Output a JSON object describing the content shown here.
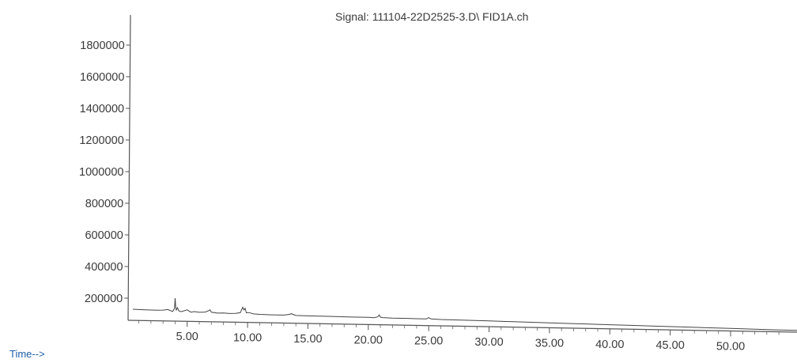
{
  "chart_data": {
    "type": "line",
    "title": "Signal: 111104-22D2525-3.D\\ FID1A.ch",
    "xlabel": "Time-->",
    "ylabel": "",
    "xlim": [
      0.5,
      55.5
    ],
    "ylim": [
      0,
      1950000
    ],
    "y_ticks": [
      200000,
      400000,
      600000,
      800000,
      1000000,
      1200000,
      1400000,
      1600000,
      1800000
    ],
    "y_tick_labels": [
      "200000",
      "400000",
      "600000",
      "800000",
      "1000000",
      "1200000",
      "1400000",
      "1600000",
      "1800000"
    ],
    "x_ticks": [
      5,
      10,
      15,
      20,
      25,
      30,
      35,
      40,
      45,
      50
    ],
    "x_tick_labels": [
      "5.00",
      "10.00",
      "15.00",
      "20.00",
      "25.00",
      "30.00",
      "35.00",
      "40.00",
      "45.00",
      "50.00"
    ],
    "grid": false,
    "colors": {
      "trace": "#444444",
      "axis": "#555555",
      "time_label": "#1f5fa8"
    },
    "series": [
      {
        "x": [
          0.5,
          1.5,
          2.5,
          3.0,
          3.4,
          3.8,
          3.95,
          4.0,
          4.05,
          4.1,
          4.2,
          4.3,
          4.5,
          5.0,
          5.3,
          5.6,
          6.0,
          6.5,
          6.8,
          6.9,
          7.0,
          7.5,
          8.0,
          8.5,
          9.0,
          9.4,
          9.6,
          9.7,
          9.8,
          9.9,
          10.1,
          10.5,
          11.0,
          12.0,
          13.0,
          13.5,
          13.6,
          14.0,
          15.0,
          16.0,
          17.0,
          18.0,
          19.0,
          20.0,
          20.5,
          20.8,
          20.9,
          21.0,
          21.2,
          22.0,
          23.0,
          24.0,
          24.8,
          25.0,
          25.2,
          26.0,
          28.0,
          30.0,
          32.0,
          34.0,
          36.0,
          38.0,
          40.0,
          42.0,
          44.0,
          46.0,
          48.0,
          50.0,
          52.0,
          54.0,
          55.5
        ],
        "y": [
          70000,
          68000,
          66000,
          68000,
          72000,
          60000,
          80000,
          145000,
          90000,
          70000,
          85000,
          65000,
          60000,
          72000,
          58000,
          62000,
          58000,
          60000,
          70000,
          75000,
          60000,
          55000,
          56000,
          54000,
          55000,
          60000,
          95000,
          78000,
          88000,
          60000,
          62000,
          54000,
          52000,
          50000,
          50000,
          55000,
          60000,
          49000,
          48000,
          47000,
          47000,
          46000,
          45000,
          45000,
          44000,
          50000,
          62000,
          48000,
          45000,
          43000,
          43000,
          42000,
          42000,
          50000,
          42000,
          40000,
          38000,
          36000,
          34000,
          32000,
          30000,
          28000,
          26000,
          24000,
          22000,
          20000,
          18000,
          16000,
          14000,
          12000,
          11000
        ]
      }
    ]
  }
}
